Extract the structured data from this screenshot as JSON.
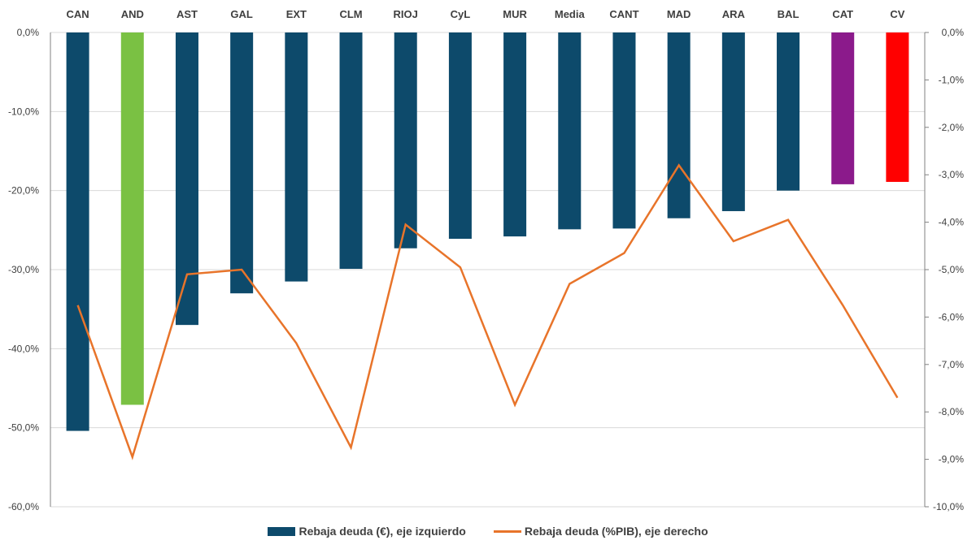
{
  "chart_data": {
    "type": "bar",
    "categories": [
      "CAN",
      "AND",
      "AST",
      "GAL",
      "EXT",
      "CLM",
      "RIOJ",
      "CyL",
      "MUR",
      "Media",
      "CANT",
      "MAD",
      "ARA",
      "BAL",
      "CAT",
      "CV"
    ],
    "series": [
      {
        "name": "Rebaja deuda (€), eje izquierdo",
        "type": "bar",
        "axis": "left",
        "values": [
          -50.4,
          -47.1,
          -37.0,
          -33.0,
          -31.5,
          -29.9,
          -27.3,
          -26.1,
          -25.8,
          -24.9,
          -24.8,
          -23.5,
          -22.6,
          -20.0,
          -19.2,
          -18.9
        ],
        "colors": [
          "#0d4a6b",
          "#7ac143",
          "#0d4a6b",
          "#0d4a6b",
          "#0d4a6b",
          "#0d4a6b",
          "#0d4a6b",
          "#0d4a6b",
          "#0d4a6b",
          "#0d4a6b",
          "#0d4a6b",
          "#0d4a6b",
          "#0d4a6b",
          "#0d4a6b",
          "#8b1a8b",
          "#ff0000"
        ]
      },
      {
        "name": "Rebaja deuda (%PIB), eje derecho",
        "type": "line",
        "axis": "right",
        "color": "#e8742a",
        "values": [
          -5.75,
          -8.95,
          -5.1,
          -5.0,
          -6.55,
          -8.75,
          -4.05,
          -4.95,
          -7.85,
          -5.3,
          -4.65,
          -2.8,
          -4.4,
          -3.95,
          -5.75,
          -7.7
        ]
      }
    ],
    "y_left": {
      "ylim": [
        -60,
        0
      ],
      "ticks": [
        "0,0%",
        "-10,0%",
        "-20,0%",
        "-30,0%",
        "-40,0%",
        "-50,0%",
        "-60,0%"
      ]
    },
    "y_right": {
      "ylim": [
        -10,
        0
      ],
      "ticks": [
        "0,0%",
        "-1,0%",
        "-2,0%",
        "-3,0%",
        "-4,0%",
        "-5,0%",
        "-6,0%",
        "-7,0%",
        "-8,0%",
        "-9,0%",
        "-10,0%"
      ]
    },
    "xaxis_position": "top",
    "grid": true,
    "legend_position": "bottom"
  },
  "colors": {
    "bar_default": "#0d4a6b",
    "line": "#e8742a",
    "grid": "#d9d9d9",
    "axis": "#808080"
  },
  "legend": {
    "bar_label": "Rebaja deuda (€), eje izquierdo",
    "line_label": "Rebaja deuda (%PIB), eje derecho"
  }
}
